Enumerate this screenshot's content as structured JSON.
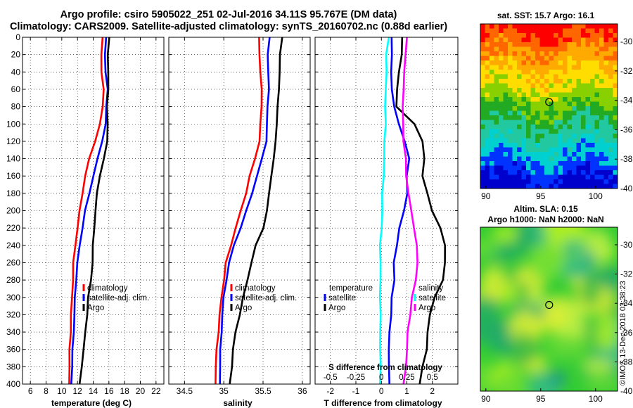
{
  "title": {
    "line1": "Argo profile: csiro 5905022_251 02-Jul-2016 34.11S 95.767E (DM data)",
    "line2": "Climatology: CARS2009. Satellite-adjusted climatology: synTS_20160702.nc (0.88d earlier)"
  },
  "credit": "©IMOS 13-Dec-2018 03:38:23",
  "colors": {
    "climatology": "#ff0000",
    "satellite": "#0000ff",
    "argo": "#000000",
    "sal_sat": "#00ffff",
    "sal_argo": "#ff00ff"
  },
  "chart_data": [
    {
      "type": "line",
      "id": "temperature",
      "xlabel": "temperature (deg C)",
      "ylabel": "",
      "xlim": [
        5,
        23
      ],
      "ylim": [
        400,
        0
      ],
      "xticks": [
        "6",
        "8",
        "10",
        "12",
        "14",
        "16",
        "18",
        "20",
        "22"
      ],
      "yticks": [
        "0",
        "20",
        "40",
        "60",
        "80",
        "100",
        "120",
        "140",
        "160",
        "180",
        "200",
        "220",
        "240",
        "260",
        "280",
        "300",
        "320",
        "340",
        "360",
        "380",
        "400"
      ],
      "depth": [
        0,
        20,
        40,
        60,
        80,
        100,
        120,
        140,
        160,
        180,
        200,
        220,
        240,
        260,
        280,
        300,
        320,
        340,
        360,
        380,
        400
      ],
      "series": [
        {
          "name": "climatology",
          "color": "#ff0000",
          "values": [
            15.2,
            15.0,
            15.1,
            15.3,
            15.2,
            14.9,
            14.2,
            13.5,
            13.0,
            12.6,
            12.3,
            12.0,
            11.7,
            11.5,
            11.4,
            11.3,
            11.2,
            11.1,
            11.0,
            11.0,
            10.9
          ]
        },
        {
          "name": "satellite-adj. clim.",
          "color": "#0000ff",
          "values": [
            15.6,
            15.5,
            15.6,
            15.8,
            15.7,
            15.6,
            15.1,
            14.6,
            14.0,
            13.5,
            13.0,
            12.6,
            12.3,
            12.0,
            11.8,
            11.7,
            11.6,
            11.5,
            11.4,
            11.3,
            11.2
          ]
        },
        {
          "name": "Argo",
          "color": "#000000",
          "values": [
            16.0,
            15.9,
            15.9,
            15.9,
            15.8,
            15.8,
            15.8,
            15.4,
            14.8,
            14.5,
            14.3,
            14.1,
            14.0,
            13.9,
            13.7,
            13.4,
            13.2,
            13.0,
            12.8,
            12.5,
            12.3
          ]
        }
      ]
    },
    {
      "type": "line",
      "id": "salinity",
      "xlabel": "salinity",
      "ylabel": "",
      "xlim": [
        34.3,
        36.1
      ],
      "ylim": [
        400,
        0
      ],
      "xticks": [
        "34.5",
        "35",
        "35.5",
        "36"
      ],
      "depth": [
        0,
        20,
        40,
        60,
        80,
        100,
        120,
        140,
        160,
        180,
        200,
        220,
        240,
        260,
        280,
        300,
        320,
        340,
        360,
        380,
        400
      ],
      "series": [
        {
          "name": "climatology",
          "color": "#ff0000",
          "values": [
            35.45,
            35.45,
            35.47,
            35.48,
            35.48,
            35.47,
            35.45,
            35.4,
            35.33,
            35.28,
            35.22,
            35.15,
            35.09,
            35.03,
            35.0,
            34.97,
            34.95,
            34.93,
            34.91,
            34.9,
            34.89
          ]
        },
        {
          "name": "satellite-adj. clim.",
          "color": "#0000ff",
          "values": [
            35.58,
            35.56,
            35.57,
            35.57,
            35.56,
            35.55,
            35.54,
            35.49,
            35.42,
            35.36,
            35.29,
            35.21,
            35.13,
            35.07,
            35.03,
            35.0,
            34.98,
            34.97,
            34.96,
            34.95,
            34.95
          ]
        },
        {
          "name": "Argo",
          "color": "#000000",
          "values": [
            35.74,
            35.72,
            35.71,
            35.7,
            35.69,
            35.67,
            35.66,
            35.64,
            35.6,
            35.58,
            35.55,
            35.5,
            35.41,
            35.35,
            35.3,
            35.25,
            35.2,
            35.15,
            35.12,
            35.1,
            35.08
          ]
        }
      ]
    },
    {
      "type": "line",
      "id": "difference",
      "xlabel": "T difference from climatology",
      "top_label": "S difference from climatology",
      "xlim": [
        -2.6,
        3.0
      ],
      "ylim": [
        400,
        0
      ],
      "xticks": [
        "-2",
        "-1",
        "0",
        "1",
        "2"
      ],
      "sticks": [
        "-0.5",
        "-0.25",
        "0",
        "0.25",
        "0.5"
      ],
      "legend_headers": [
        "temperature",
        "salinity"
      ],
      "depth": [
        0,
        20,
        40,
        60,
        80,
        100,
        120,
        140,
        160,
        180,
        200,
        220,
        240,
        260,
        280,
        300,
        320,
        340,
        360,
        380,
        400
      ],
      "series": [
        {
          "name": "satellite",
          "group": "temperature",
          "color": "#0000ff",
          "values": [
            0.4,
            0.4,
            0.4,
            0.4,
            0.5,
            0.7,
            0.9,
            1.1,
            1.0,
            1.0,
            0.9,
            0.7,
            0.6,
            0.5,
            0.5,
            0.4,
            0.4,
            0.3,
            0.3,
            0.3,
            0.3
          ]
        },
        {
          "name": "Argo",
          "group": "temperature",
          "color": "#000000",
          "values": [
            0.8,
            0.8,
            0.7,
            0.6,
            0.6,
            1.3,
            1.6,
            1.7,
            1.6,
            1.8,
            2.0,
            2.3,
            2.5,
            2.5,
            2.4,
            2.1,
            1.9,
            1.8,
            1.8,
            1.6,
            1.5
          ]
        },
        {
          "name": "satellite",
          "group": "salinity",
          "color": "#00ffff",
          "values": [
            0.07,
            0.05,
            0.05,
            0.04,
            0.04,
            0.04,
            0.03,
            0.03,
            0.02,
            0.01,
            0.01,
            0.0,
            -0.01,
            -0.01,
            -0.01,
            -0.01,
            -0.01,
            -0.01,
            -0.01,
            -0.01,
            -0.01
          ]
        },
        {
          "name": "Argo",
          "group": "salinity",
          "color": "#ff00ff",
          "values": [
            0.25,
            0.24,
            0.22,
            0.22,
            0.21,
            0.21,
            0.22,
            0.24,
            0.24,
            0.27,
            0.29,
            0.32,
            0.35,
            0.35,
            0.34,
            0.3,
            0.28,
            0.26,
            0.25,
            0.24,
            0.22
          ]
        }
      ]
    },
    {
      "type": "heatmap",
      "id": "sst_map",
      "title": "sat. SST: 15.7 Argo: 16.1",
      "xlim": [
        89.5,
        102
      ],
      "ylim": [
        -40,
        -28.8
      ],
      "xticks": [
        "90",
        "95",
        "100"
      ],
      "yticks": [
        "-30",
        "-32",
        "-34",
        "-36",
        "-38",
        "-40"
      ],
      "marker": {
        "lon": 95.767,
        "lat": -34.11
      }
    },
    {
      "type": "heatmap",
      "id": "sla_map",
      "title_line1": "Altim. SLA: 0.15",
      "title_line2": "Argo h1000: NaN h2000: NaN",
      "xlim": [
        89.5,
        102
      ],
      "ylim": [
        -40,
        -28.8
      ],
      "xticks": [
        "90",
        "95",
        "100"
      ],
      "yticks": [
        "-30",
        "-32",
        "-34",
        "-36",
        "-38",
        "-40"
      ],
      "marker": {
        "lon": 95.767,
        "lat": -34.11
      }
    }
  ]
}
